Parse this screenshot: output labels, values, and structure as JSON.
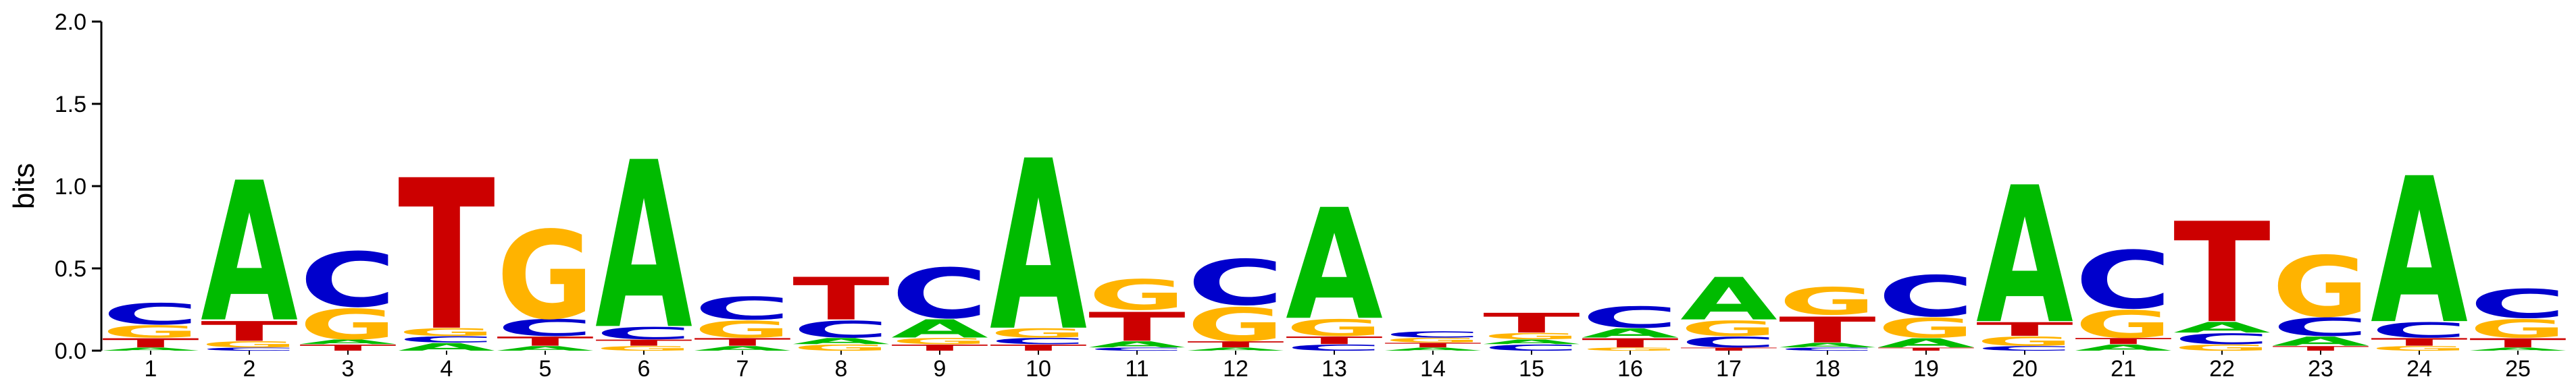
{
  "chart_data": {
    "type": "sequence-logo",
    "ylabel": "bits",
    "ylim": [
      0,
      2.0
    ],
    "yticks": [
      "0.0",
      "0.5",
      "1.0",
      "1.5",
      "2.0"
    ],
    "colors": {
      "A": "#00bb00",
      "C": "#0000cc",
      "G": "#ffb300",
      "T": "#cc0000"
    },
    "positions": [
      {
        "pos": "1",
        "stack": [
          [
            "A",
            0.02
          ],
          [
            "T",
            0.06
          ],
          [
            "G",
            0.08
          ],
          [
            "C",
            0.14
          ]
        ]
      },
      {
        "pos": "2",
        "stack": [
          [
            "C",
            0.02
          ],
          [
            "G",
            0.04
          ],
          [
            "T",
            0.13
          ],
          [
            "A",
            0.92
          ]
        ]
      },
      {
        "pos": "3",
        "stack": [
          [
            "T",
            0.04
          ],
          [
            "A",
            0.03
          ],
          [
            "G",
            0.2
          ],
          [
            "C",
            0.36
          ]
        ]
      },
      {
        "pos": "4",
        "stack": [
          [
            "A",
            0.05
          ],
          [
            "C",
            0.04
          ],
          [
            "G",
            0.05
          ],
          [
            "T",
            0.99
          ]
        ]
      },
      {
        "pos": "5",
        "stack": [
          [
            "A",
            0.03
          ],
          [
            "T",
            0.06
          ],
          [
            "C",
            0.11
          ],
          [
            "G",
            0.58
          ]
        ]
      },
      {
        "pos": "6",
        "stack": [
          [
            "G",
            0.03
          ],
          [
            "T",
            0.04
          ],
          [
            "C",
            0.08
          ],
          [
            "A",
            1.1
          ]
        ]
      },
      {
        "pos": "7",
        "stack": [
          [
            "A",
            0.03
          ],
          [
            "T",
            0.05
          ],
          [
            "G",
            0.11
          ],
          [
            "C",
            0.15
          ]
        ]
      },
      {
        "pos": "8",
        "stack": [
          [
            "G",
            0.04
          ],
          [
            "A",
            0.04
          ],
          [
            "C",
            0.11
          ],
          [
            "T",
            0.28
          ]
        ]
      },
      {
        "pos": "9",
        "stack": [
          [
            "T",
            0.04
          ],
          [
            "G",
            0.04
          ],
          [
            "A",
            0.12
          ],
          [
            "C",
            0.33
          ]
        ]
      },
      {
        "pos": "10",
        "stack": [
          [
            "T",
            0.04
          ],
          [
            "C",
            0.04
          ],
          [
            "G",
            0.06
          ],
          [
            "A",
            1.12
          ]
        ]
      },
      {
        "pos": "11",
        "stack": [
          [
            "C",
            0.02
          ],
          [
            "A",
            0.04
          ],
          [
            "T",
            0.19
          ],
          [
            "G",
            0.2
          ]
        ]
      },
      {
        "pos": "12",
        "stack": [
          [
            "A",
            0.02
          ],
          [
            "T",
            0.04
          ],
          [
            "G",
            0.22
          ],
          [
            "C",
            0.3
          ]
        ]
      },
      {
        "pos": "13",
        "stack": [
          [
            "C",
            0.04
          ],
          [
            "T",
            0.05
          ],
          [
            "G",
            0.11
          ],
          [
            "A",
            0.73
          ]
        ]
      },
      {
        "pos": "14",
        "stack": [
          [
            "A",
            0.02
          ],
          [
            "T",
            0.03
          ],
          [
            "G",
            0.03
          ],
          [
            "C",
            0.04
          ]
        ]
      },
      {
        "pos": "15",
        "stack": [
          [
            "C",
            0.04
          ],
          [
            "A",
            0.03
          ],
          [
            "G",
            0.04
          ],
          [
            "T",
            0.13
          ]
        ]
      },
      {
        "pos": "16",
        "stack": [
          [
            "G",
            0.02
          ],
          [
            "T",
            0.06
          ],
          [
            "A",
            0.06
          ],
          [
            "C",
            0.14
          ]
        ]
      },
      {
        "pos": "17",
        "stack": [
          [
            "T",
            0.02
          ],
          [
            "C",
            0.07
          ],
          [
            "G",
            0.1
          ],
          [
            "A",
            0.28
          ]
        ]
      },
      {
        "pos": "18",
        "stack": [
          [
            "C",
            0.02
          ],
          [
            "A",
            0.03
          ],
          [
            "T",
            0.17
          ],
          [
            "G",
            0.18
          ]
        ]
      },
      {
        "pos": "19",
        "stack": [
          [
            "T",
            0.02
          ],
          [
            "A",
            0.06
          ],
          [
            "G",
            0.13
          ],
          [
            "C",
            0.27
          ]
        ]
      },
      {
        "pos": "20",
        "stack": [
          [
            "C",
            0.03
          ],
          [
            "G",
            0.06
          ],
          [
            "T",
            0.09
          ],
          [
            "A",
            0.9
          ]
        ]
      },
      {
        "pos": "21",
        "stack": [
          [
            "A",
            0.04
          ],
          [
            "T",
            0.04
          ],
          [
            "G",
            0.18
          ],
          [
            "C",
            0.38
          ]
        ]
      },
      {
        "pos": "22",
        "stack": [
          [
            "G",
            0.04
          ],
          [
            "C",
            0.07
          ],
          [
            "A",
            0.07
          ],
          [
            "T",
            0.66
          ]
        ]
      },
      {
        "pos": "23",
        "stack": [
          [
            "T",
            0.03
          ],
          [
            "A",
            0.06
          ],
          [
            "C",
            0.12
          ],
          [
            "G",
            0.4
          ]
        ]
      },
      {
        "pos": "24",
        "stack": [
          [
            "G",
            0.03
          ],
          [
            "T",
            0.05
          ],
          [
            "C",
            0.1
          ],
          [
            "A",
            0.96
          ]
        ]
      },
      {
        "pos": "25",
        "stack": [
          [
            "A",
            0.02
          ],
          [
            "T",
            0.06
          ],
          [
            "G",
            0.12
          ],
          [
            "C",
            0.19
          ]
        ]
      }
    ]
  }
}
